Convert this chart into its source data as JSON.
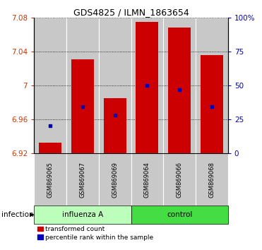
{
  "title": "GDS4825 / ILMN_1863654",
  "samples": [
    "GSM869065",
    "GSM869067",
    "GSM869069",
    "GSM869064",
    "GSM869066",
    "GSM869068"
  ],
  "group_labels": [
    "influenza A",
    "control"
  ],
  "bar_bottom": 6.92,
  "red_tops": [
    6.932,
    7.031,
    6.985,
    7.075,
    7.068,
    7.036
  ],
  "blue_values": [
    6.952,
    6.975,
    6.965,
    7.0,
    6.995,
    6.975
  ],
  "ylim_min": 6.92,
  "ylim_max": 7.08,
  "yticks_left": [
    6.92,
    6.96,
    7.0,
    7.04,
    7.08
  ],
  "yticks_left_labels": [
    "6.92",
    "6.96",
    "7",
    "7.04",
    "7.08"
  ],
  "yticks_right_labels": [
    "0",
    "25",
    "50",
    "75",
    "100%"
  ],
  "left_color": "#cc3300",
  "right_color": "#0000bb",
  "bar_color": "#cc0000",
  "blue_color": "#0000bb",
  "col_bg": "#c8c8c8",
  "influenza_bg": "#bbffbb",
  "control_bg": "#44dd44",
  "label_group": "infection",
  "legend_red": "transformed count",
  "legend_blue": "percentile rank within the sample",
  "bar_width": 0.7
}
